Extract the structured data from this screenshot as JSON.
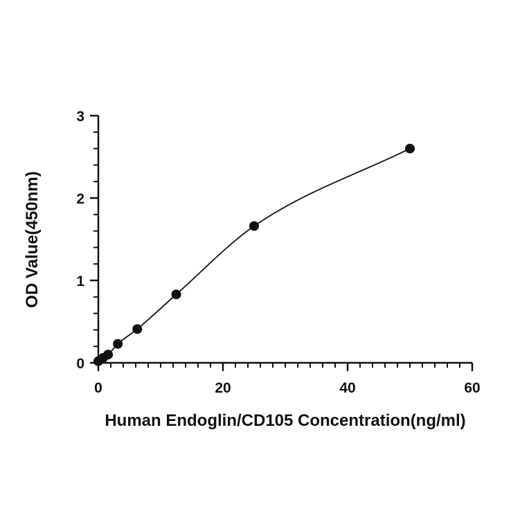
{
  "chart_data": {
    "type": "scatter",
    "title": "",
    "xlabel": "Human Endoglin/CD105 Concentration(ng/ml)",
    "ylabel": "OD Value(450nm)",
    "xlim": [
      0,
      60
    ],
    "ylim": [
      0,
      3
    ],
    "x_ticks": [
      0,
      20,
      40,
      60
    ],
    "y_ticks": [
      0,
      1,
      2,
      3
    ],
    "x_tick_labels": [
      "0",
      "20",
      "40",
      "60"
    ],
    "y_tick_labels": [
      "0",
      "1",
      "2",
      "3"
    ],
    "x_minor_step": 2,
    "y_minor_step": 0.2,
    "grid": false,
    "legend": "none",
    "fit_curve": true,
    "colors": {
      "points": "#111111",
      "curve": "#111111",
      "axes": "#111111"
    },
    "series": [
      {
        "x": [
          0,
          0.78,
          1.56,
          3.13,
          6.25,
          12.5,
          25,
          50
        ],
        "y": [
          0.02,
          0.06,
          0.1,
          0.23,
          0.41,
          0.83,
          1.66,
          2.6
        ]
      }
    ]
  }
}
